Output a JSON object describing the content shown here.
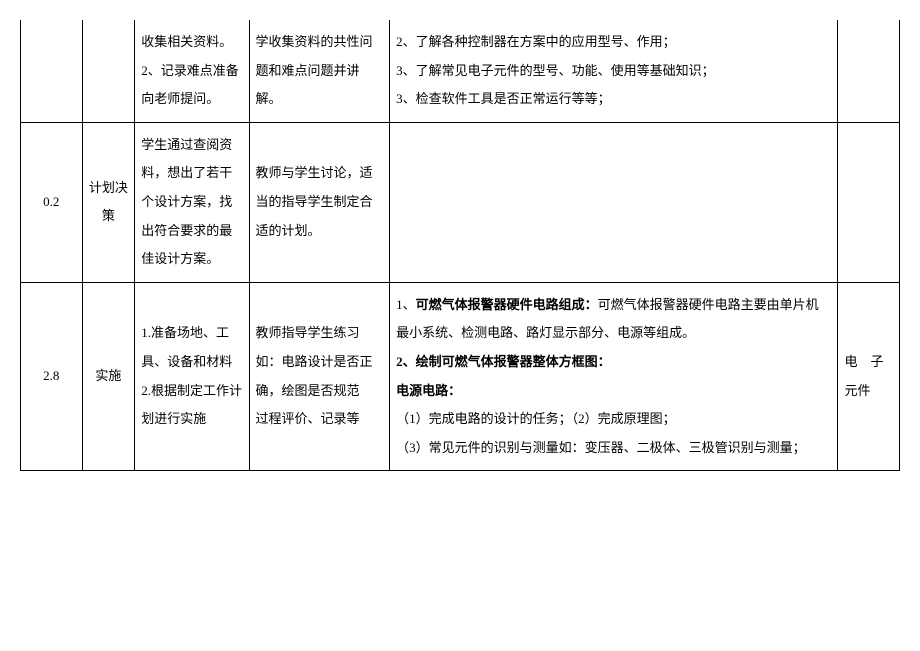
{
  "rows": [
    {
      "c1": "",
      "c2": "",
      "c3": "收集相关资料。 2、记录难点准备向老师提问。",
      "c4": "学收集资料的共性问题和难点问题并讲解。",
      "c5_lines": [
        "2、了解各种控制器在方案中的应用型号、作用；",
        "3、了解常见电子元件的型号、功能、使用等基础知识；",
        "3、检查软件工具是否正常运行等等；"
      ],
      "c6": ""
    },
    {
      "c1": "0.2",
      "c2": "计划决策",
      "c3": "学生通过查阅资料，想出了若干个设计方案，找出符合要求的最佳设计方案。",
      "c4": "教师与学生讨论，适当的指导学生制定合适的计划。",
      "c5_lines": [],
      "c6": ""
    },
    {
      "c1": "2.8",
      "c2": "实施",
      "c3": "1.准备场地、工具、设备和材料\n2.根据制定工作计划进行实施",
      "c4": "教师指导学生练习\n如：电路设计是否正确，绘图是否规范\n过程评价、记录等",
      "c5_parts": [
        {
          "text": "1、",
          "bold": false
        },
        {
          "text": "可燃气体报警器硬件电路组成：",
          "bold": true
        },
        {
          "text": "可燃气体报警器硬件电路主要由单片机最小系统、检测电路、路灯显示部分、电源等组成。",
          "bold": false,
          "br": true
        },
        {
          "text": "2、绘制可燃气体报警器整体方框图：",
          "bold": true,
          "br": true
        },
        {
          "text": "电源电路：",
          "bold": true,
          "br": true
        },
        {
          "text": "（1）完成电路的设计的任务；（2）完成原理图；",
          "bold": false,
          "br": true
        },
        {
          "text": "（3）常见元件的识别与测量如：变压器、二极体、三极管识别与测量；",
          "bold": false
        }
      ],
      "c6": "电　子元件"
    }
  ]
}
